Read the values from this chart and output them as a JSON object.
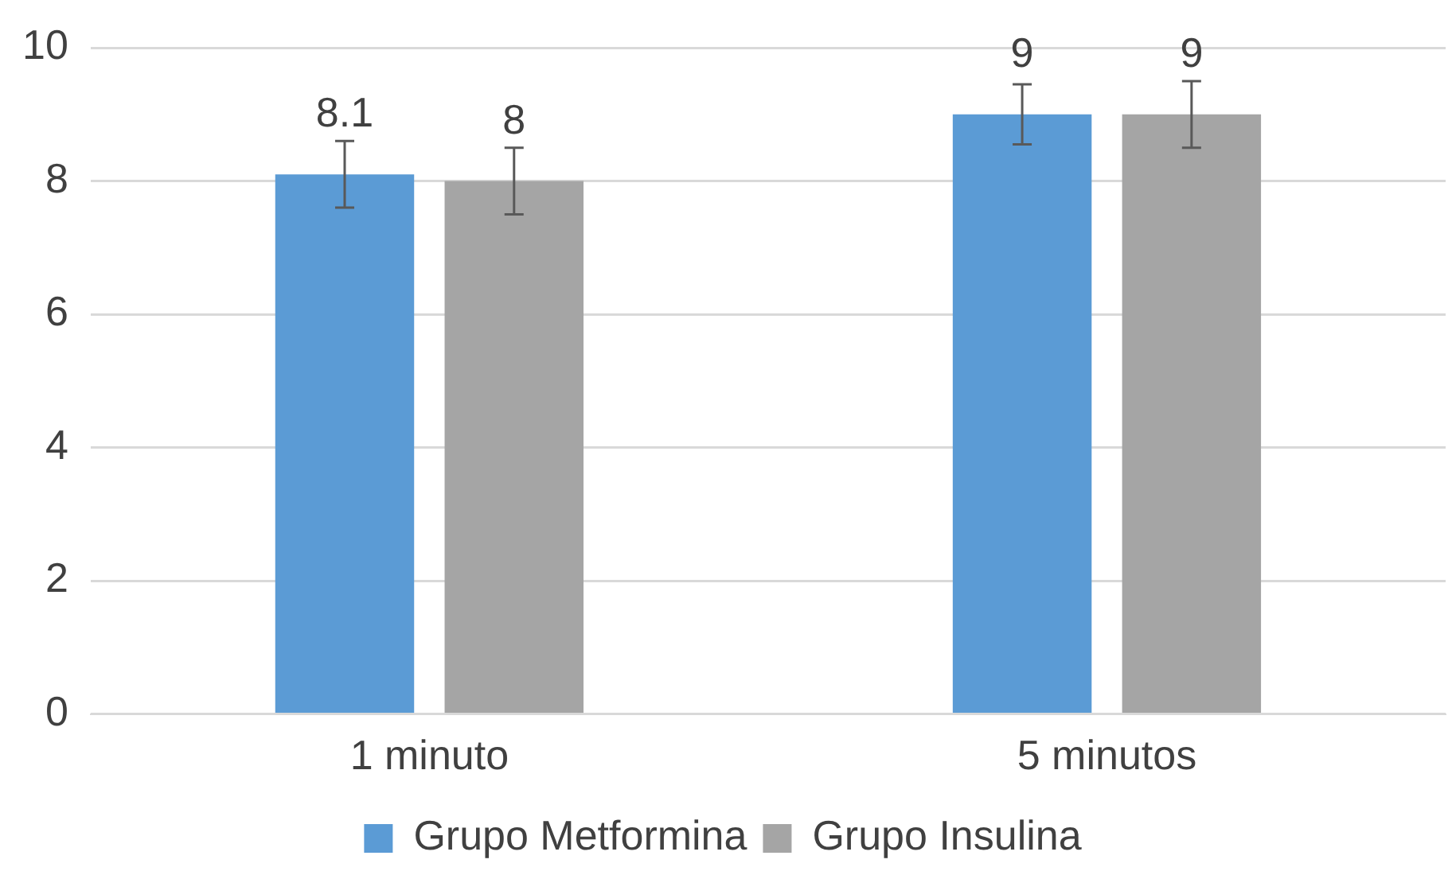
{
  "chart_data": {
    "type": "bar",
    "categories": [
      "1 minuto",
      "5 minutos"
    ],
    "series": [
      {
        "name": "Grupo Metformina",
        "color": "#5b9bd5",
        "values": [
          8.1,
          9
        ],
        "errors": [
          0.5,
          0.45
        ]
      },
      {
        "name": "Grupo Insulina",
        "color": "#a5a5a5",
        "values": [
          8,
          9
        ],
        "errors": [
          0.5,
          0.5
        ]
      }
    ],
    "ylim": [
      0,
      10
    ],
    "yticks": [
      0,
      2,
      4,
      6,
      8,
      10
    ],
    "grid": "y",
    "legend": "bottom",
    "data_labels": true
  }
}
